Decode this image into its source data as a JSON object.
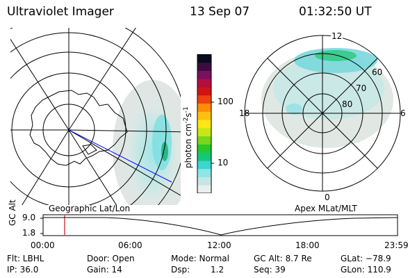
{
  "header": {
    "title": "Ultraviolet Imager",
    "date": "13 Sep 07",
    "time": "01:32:50 UT"
  },
  "left_panel": {
    "caption": "Geographic Lat/Lon"
  },
  "right_panel": {
    "caption": "Apex MLat/MLT",
    "mlt_labels": {
      "top": "12",
      "left": "18",
      "right": "6",
      "bottom": "0"
    },
    "lat_labels": [
      "60",
      "70",
      "80"
    ]
  },
  "colorbar": {
    "label": "photon cm",
    "exp1": "-2",
    "mid": "s",
    "exp2": "-1",
    "ticks": [
      "100",
      "10"
    ],
    "colors": [
      "#e8f0ee",
      "#c6e6e6",
      "#8ee6e6",
      "#3ad6d0",
      "#14c878",
      "#28c82a",
      "#7ad61a",
      "#c8e614",
      "#ffe614",
      "#ffbe14",
      "#ff8c0a",
      "#f04014",
      "#d01414",
      "#b01040",
      "#7a1060",
      "#3c0c40",
      "#0a0a20"
    ]
  },
  "timeline": {
    "ylabel": "GC Alt",
    "yticks": [
      "9.0",
      "1.8"
    ],
    "xticks": [
      "00:00",
      "06:00",
      "12:00",
      "18:00",
      "23:59"
    ]
  },
  "info": {
    "row1": [
      "Flt: LBHL",
      "Door: Open",
      "Mode: Normal",
      "GC Alt: 8.7 Re",
      "GLat: −78.9"
    ],
    "row2": [
      "IP: 36.0",
      "Gain: 14",
      "Dsp:",
      "1.2",
      "Seq: 39",
      "GLon: 110.9"
    ]
  }
}
